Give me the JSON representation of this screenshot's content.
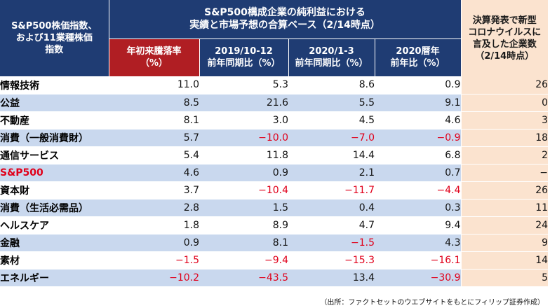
{
  "header": {
    "left": [
      "S&P500株価指数、",
      "および11業種株価",
      "指数"
    ],
    "top": [
      "S&P500構成企業の純利益における",
      "実績と市場予想の合算ベース（2/14時点）"
    ],
    "columns": [
      [
        "年初来騰落率",
        "（%）"
      ],
      [
        "2019/10-12",
        "前年同期比（%）"
      ],
      [
        "2020/1-3",
        "前年同期比（%）"
      ],
      [
        "2020暦年",
        "前年比（%）"
      ]
    ],
    "right": [
      "決算発表で新型",
      "コロナウイルスに",
      "言及した企業数",
      "（2/14時点）"
    ]
  },
  "rows": [
    {
      "name": "情報技術",
      "ytd": "11.0",
      "q4": "5.3",
      "q1": "8.6",
      "year": "0.9",
      "count": "26"
    },
    {
      "name": "公益",
      "ytd": "8.5",
      "q4": "21.6",
      "q1": "5.5",
      "year": "9.1",
      "count": "0"
    },
    {
      "name": "不動産",
      "ytd": "8.1",
      "q4": "3.0",
      "q1": "4.5",
      "year": "4.6",
      "count": "3"
    },
    {
      "name": "消費（一般消費財）",
      "ytd": "5.7",
      "q4": "−10.0",
      "q1": "−7.0",
      "year": "−0.9",
      "count": "18"
    },
    {
      "name": "通信サービス",
      "ytd": "5.4",
      "q4": "11.8",
      "q1": "14.4",
      "year": "6.8",
      "count": "2"
    },
    {
      "name": "S&P500",
      "ytd": "4.6",
      "q4": "0.9",
      "q1": "2.1",
      "year": "0.7",
      "count": "−"
    },
    {
      "name": "資本財",
      "ytd": "3.7",
      "q4": "−10.4",
      "q1": "−11.7",
      "year": "−4.4",
      "count": "26"
    },
    {
      "name": "消費（生活必需品）",
      "ytd": "2.8",
      "q4": "1.5",
      "q1": "0.4",
      "year": "0.3",
      "count": "11"
    },
    {
      "name": "ヘルスケア",
      "ytd": "1.8",
      "q4": "8.9",
      "q1": "4.7",
      "year": "9.4",
      "count": "24"
    },
    {
      "name": "金融",
      "ytd": "0.9",
      "q4": "8.1",
      "q1": "−1.5",
      "year": "4.3",
      "count": "9"
    },
    {
      "name": "素材",
      "ytd": "−1.5",
      "q4": "−9.4",
      "q1": "−15.3",
      "year": "−16.1",
      "count": "14"
    },
    {
      "name": "エネルギー",
      "ytd": "−10.2",
      "q4": "−43.5",
      "q1": "13.4",
      "year": "−30.9",
      "count": "5"
    }
  ],
  "source": "（出所：ファクトセットのウエブサイトをもとにフィリップ証券作成）",
  "colors": {
    "navy": "#1f3c73",
    "red_header": "#b01e23",
    "peach": "#fbe3cf",
    "row_blue": "#c9d8ee",
    "negative": "#e0001a"
  }
}
